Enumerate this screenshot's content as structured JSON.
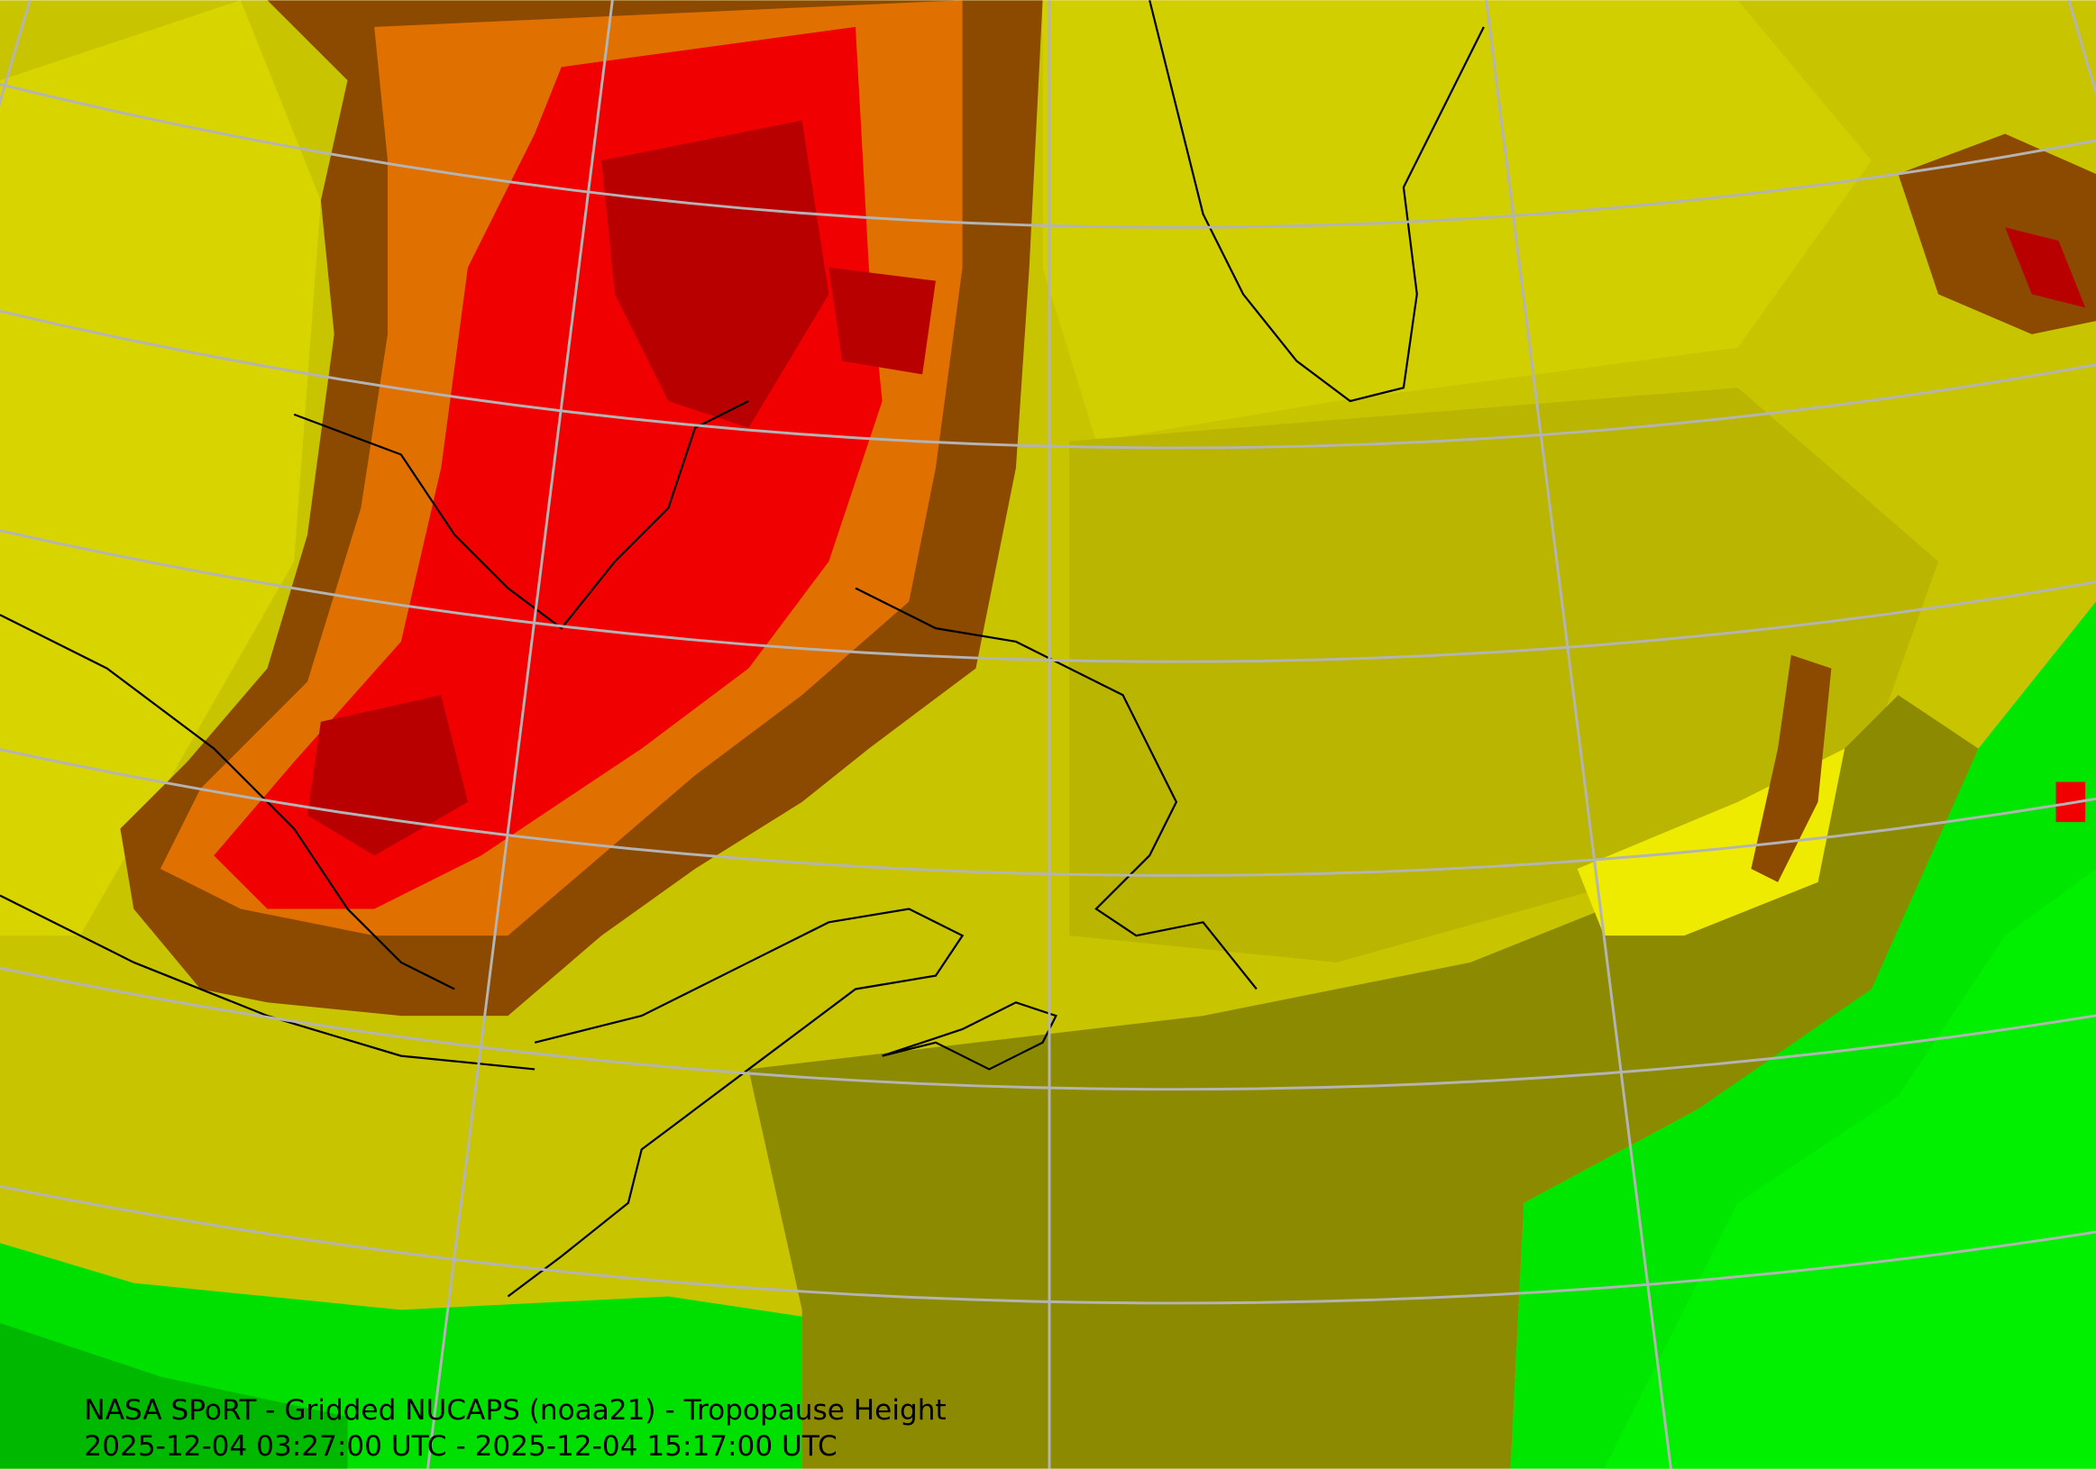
{
  "caption": {
    "title": "NASA SPoRT - Gridded NUCAPS (noaa21) - Tropopause Height",
    "time_range": "2025-12-04 03:27:00 UTC - 2025-12-04 15:17:00 UTC"
  }
}
